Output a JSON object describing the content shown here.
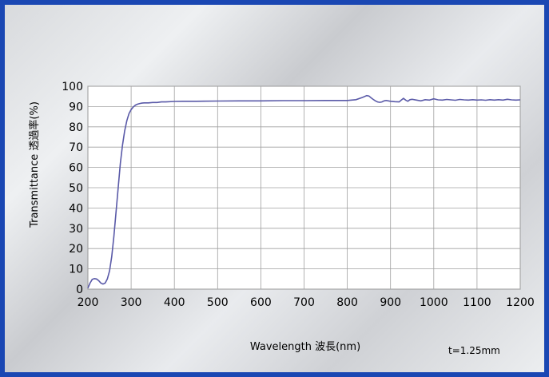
{
  "chart_data": {
    "type": "line",
    "title": "",
    "xlabel": "Wavelength 波長(nm)",
    "ylabel": "Transmittance 透過率(%)",
    "xlim": [
      200,
      1200
    ],
    "ylim": [
      0,
      100
    ],
    "xticks": [
      "200",
      "300",
      "400",
      "500",
      "600",
      "700",
      "800",
      "900",
      "1000",
      "1100",
      "1200"
    ],
    "yticks": [
      "0",
      "10",
      "20",
      "30",
      "40",
      "50",
      "60",
      "70",
      "80",
      "90",
      "100"
    ],
    "grid": true,
    "annotation": "t=1.25mm",
    "colors": {
      "line": "#5a5aa8",
      "grid": "#a0a0a0",
      "plot_bg": "#ffffff",
      "border": "#1a47b3"
    },
    "series": [
      {
        "x": [
          200,
          205,
          210,
          215,
          220,
          225,
          230,
          235,
          240,
          245,
          250,
          255,
          260,
          265,
          270,
          275,
          280,
          285,
          290,
          295,
          300,
          305,
          310,
          315,
          320,
          325,
          330,
          340,
          350,
          360,
          370,
          380,
          400,
          420,
          450,
          500,
          550,
          600,
          650,
          700,
          750,
          800,
          820,
          835,
          845,
          850,
          855,
          860,
          865,
          870,
          875,
          880,
          885,
          890,
          900,
          910,
          920,
          925,
          930,
          935,
          940,
          945,
          950,
          960,
          970,
          980,
          990,
          1000,
          1010,
          1020,
          1030,
          1040,
          1050,
          1060,
          1070,
          1080,
          1090,
          1100,
          1110,
          1120,
          1130,
          1140,
          1150,
          1160,
          1170,
          1180,
          1190,
          1200
        ],
        "y": [
          0.5,
          3,
          4.8,
          5.2,
          5,
          4.2,
          3,
          2.5,
          3,
          5,
          9,
          16,
          26,
          38,
          50,
          62,
          71,
          78,
          83,
          86.5,
          88.5,
          89.8,
          90.7,
          91.2,
          91.5,
          91.7,
          91.8,
          91.8,
          92,
          92,
          92.3,
          92.3,
          92.5,
          92.6,
          92.6,
          92.7,
          92.8,
          92.8,
          92.9,
          92.9,
          93,
          93,
          93.4,
          94.5,
          95.4,
          95.2,
          94.3,
          93.5,
          92.8,
          92.3,
          92.1,
          92.3,
          92.8,
          93,
          92.6,
          92.4,
          92.3,
          93.2,
          94,
          93.2,
          92.6,
          93.4,
          93.6,
          93.2,
          92.8,
          93.4,
          93.2,
          93.8,
          93.3,
          93.2,
          93.5,
          93.3,
          93.1,
          93.5,
          93.3,
          93.2,
          93.4,
          93.2,
          93.3,
          93.1,
          93.4,
          93.2,
          93.4,
          93.2,
          93.6,
          93.3,
          93.2,
          93.3
        ]
      }
    ]
  }
}
